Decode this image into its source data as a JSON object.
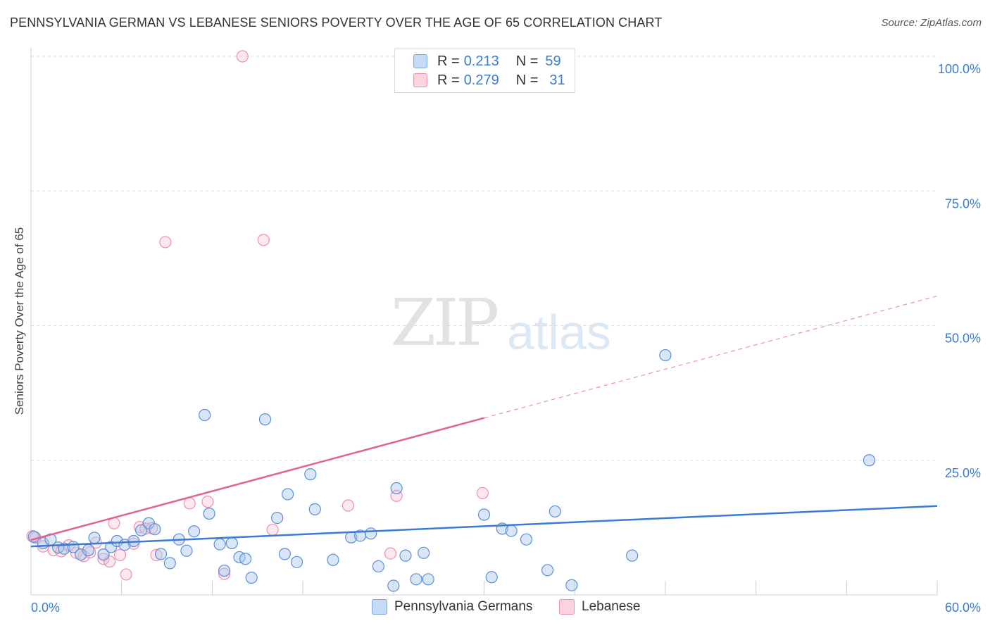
{
  "header": {
    "title": "PENNSYLVANIA GERMAN VS LEBANESE SENIORS POVERTY OVER THE AGE OF 65 CORRELATION CHART",
    "source": "Source: ZipAtlas.com"
  },
  "watermark": {
    "zip": "ZIP",
    "atlas": "atlas"
  },
  "legend": {
    "rows": [
      {
        "r_label": "R =",
        "r_value": "0.213",
        "n_label": "N =",
        "n_value": "59",
        "color": "#a9c8f0"
      },
      {
        "r_label": "R =",
        "r_value": "0.279",
        "n_label": "N =",
        "n_value": "31",
        "color": "#f7bccd"
      }
    ]
  },
  "bottom_legend": [
    "Pennsylvania Germans",
    "Lebanese"
  ],
  "chart_data": {
    "type": "scatter",
    "title": "PENNSYLVANIA GERMAN VS LEBANESE SENIORS POVERTY OVER THE AGE OF 65 CORRELATION CHART",
    "xlabel": "",
    "ylabel": "Seniors Poverty Over the Age of 65",
    "xlim": [
      0,
      60
    ],
    "ylim": [
      0,
      100
    ],
    "x_tick_labels": [
      "0.0%",
      "60.0%"
    ],
    "y_tick_labels": [
      "25.0%",
      "50.0%",
      "75.0%",
      "100.0%"
    ],
    "y_ticks": [
      25,
      50,
      75,
      100
    ],
    "grid": true,
    "legend_position": "top-center",
    "colors": {
      "pa_german": "#3a7bd5",
      "lebanese": "#e0648f",
      "axis_text": "#3a7bd5"
    },
    "series": [
      {
        "name": "Pennsylvania Germans",
        "r": 0.213,
        "n": 59,
        "trend": {
          "x": [
            0,
            60
          ],
          "y": [
            9.0,
            16.5
          ]
        },
        "points": [
          [
            0.2,
            10.8
          ],
          [
            0.8,
            9.6
          ],
          [
            1.3,
            10.3
          ],
          [
            1.8,
            8.8
          ],
          [
            2.2,
            8.6
          ],
          [
            2.8,
            8.9
          ],
          [
            3.3,
            7.5
          ],
          [
            3.8,
            8.3
          ],
          [
            4.2,
            10.6
          ],
          [
            4.8,
            7.5
          ],
          [
            5.3,
            8.9
          ],
          [
            5.7,
            10.0
          ],
          [
            6.2,
            9.3
          ],
          [
            6.8,
            10.0
          ],
          [
            7.3,
            12.0
          ],
          [
            7.8,
            13.3
          ],
          [
            8.2,
            12.2
          ],
          [
            8.6,
            7.6
          ],
          [
            9.2,
            5.9
          ],
          [
            9.8,
            10.3
          ],
          [
            10.3,
            8.2
          ],
          [
            10.8,
            11.8
          ],
          [
            11.5,
            33.4
          ],
          [
            11.8,
            15.1
          ],
          [
            12.5,
            9.4
          ],
          [
            12.8,
            4.5
          ],
          [
            13.3,
            9.6
          ],
          [
            13.8,
            7.0
          ],
          [
            14.2,
            6.7
          ],
          [
            14.6,
            3.2
          ],
          [
            15.5,
            32.6
          ],
          [
            16.3,
            14.3
          ],
          [
            16.8,
            7.6
          ],
          [
            17.0,
            18.7
          ],
          [
            17.6,
            6.1
          ],
          [
            18.5,
            22.4
          ],
          [
            18.8,
            15.9
          ],
          [
            20.0,
            6.5
          ],
          [
            21.2,
            10.7
          ],
          [
            21.8,
            11.0
          ],
          [
            22.5,
            11.4
          ],
          [
            23.0,
            5.3
          ],
          [
            24.0,
            1.7
          ],
          [
            24.2,
            19.8
          ],
          [
            24.8,
            7.3
          ],
          [
            25.5,
            2.9
          ],
          [
            26.0,
            7.8
          ],
          [
            26.3,
            2.9
          ],
          [
            30.0,
            14.9
          ],
          [
            30.5,
            3.3
          ],
          [
            31.2,
            12.3
          ],
          [
            31.8,
            11.9
          ],
          [
            32.8,
            10.3
          ],
          [
            34.2,
            4.6
          ],
          [
            34.7,
            15.5
          ],
          [
            35.8,
            1.8
          ],
          [
            39.8,
            7.3
          ],
          [
            42.0,
            44.5
          ],
          [
            55.5,
            25.0
          ]
        ]
      },
      {
        "name": "Lebanese",
        "r": 0.279,
        "n": 31,
        "trend": {
          "x": [
            0,
            60
          ],
          "y": [
            10.2,
            55.5
          ],
          "solid_until_x": 30
        },
        "points": [
          [
            0.3,
            10.6
          ],
          [
            0.8,
            9.0
          ],
          [
            1.5,
            8.3
          ],
          [
            2.0,
            8.1
          ],
          [
            2.5,
            9.2
          ],
          [
            3.0,
            7.8
          ],
          [
            3.5,
            7.2
          ],
          [
            3.9,
            7.9
          ],
          [
            4.3,
            9.7
          ],
          [
            4.8,
            6.7
          ],
          [
            5.2,
            6.2
          ],
          [
            5.5,
            13.3
          ],
          [
            5.9,
            7.4
          ],
          [
            6.3,
            3.8
          ],
          [
            6.8,
            9.5
          ],
          [
            7.2,
            12.6
          ],
          [
            7.6,
            12.3
          ],
          [
            8.0,
            12.4
          ],
          [
            8.3,
            7.4
          ],
          [
            8.9,
            65.5
          ],
          [
            10.5,
            17.0
          ],
          [
            11.7,
            17.3
          ],
          [
            12.8,
            3.9
          ],
          [
            14.0,
            100.0
          ],
          [
            15.4,
            65.9
          ],
          [
            16.0,
            12.1
          ],
          [
            21.0,
            16.6
          ],
          [
            23.8,
            7.7
          ],
          [
            24.2,
            18.4
          ],
          [
            29.9,
            18.9
          ],
          [
            0.1,
            10.9
          ]
        ]
      }
    ]
  }
}
